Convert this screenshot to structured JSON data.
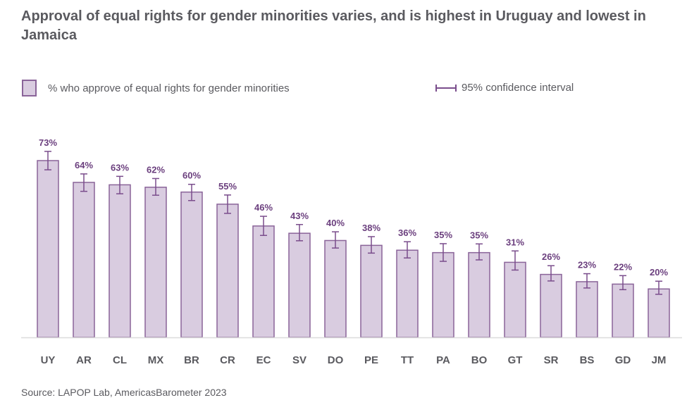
{
  "title": "Approval of equal rights for gender minorities varies, and is highest in Uruguay and lowest in Jamaica",
  "legend": {
    "bar_label": "% who approve of equal rights for gender minorities",
    "ci_label": "95% confidence interval"
  },
  "source": "Source: LAPOP Lab, AmericasBarometer 2023",
  "colors": {
    "bar_fill": "#d9cce0",
    "bar_stroke": "#8a6499",
    "ci_stroke": "#7a4d8c",
    "value_label": "#6b3f7e",
    "axis": "#dcdcdc",
    "text": "#5a5a5f"
  },
  "chart_data": {
    "type": "bar",
    "title": "Approval of equal rights for gender minorities varies, and is highest in Uruguay and lowest in Jamaica",
    "xlabel": "",
    "ylabel": "",
    "ylim": [
      0,
      73
    ],
    "grid": false,
    "legend_position": "top",
    "categories": [
      "UY",
      "AR",
      "CL",
      "MX",
      "BR",
      "CR",
      "EC",
      "SV",
      "DO",
      "PE",
      "TT",
      "PA",
      "BO",
      "GT",
      "SR",
      "BS",
      "GD",
      "JM"
    ],
    "series": [
      {
        "name": "% who approve of equal rights for gender minorities",
        "values": [
          73,
          64,
          63,
          62,
          60,
          55,
          46,
          43,
          40,
          38,
          36,
          35,
          35,
          31,
          26,
          23,
          22,
          20
        ],
        "value_labels": [
          "73%",
          "64%",
          "63%",
          "62%",
          "60%",
          "55%",
          "46%",
          "43%",
          "40%",
          "38%",
          "36%",
          "35%",
          "35%",
          "31%",
          "26%",
          "23%",
          "22%",
          "20%"
        ],
        "ci_low": [
          69.2,
          60.3,
          59.3,
          58.7,
          56.5,
          51.2,
          42.1,
          39.9,
          36.9,
          34.8,
          32.8,
          31.4,
          32.0,
          27.8,
          23.3,
          20.4,
          19.7,
          17.8
        ],
        "ci_high": [
          76.8,
          67.5,
          66.5,
          65.6,
          63.2,
          58.8,
          50.0,
          46.6,
          43.6,
          41.6,
          39.5,
          38.7,
          38.6,
          35.7,
          29.6,
          26.3,
          25.5,
          23.2
        ]
      }
    ]
  }
}
